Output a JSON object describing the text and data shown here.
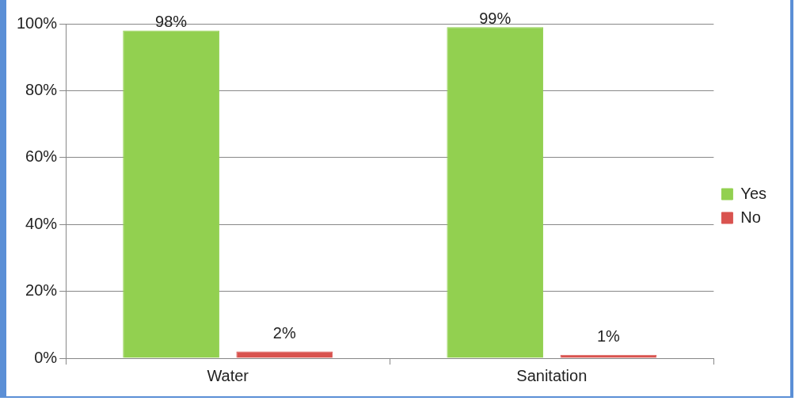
{
  "chart_data": {
    "type": "bar",
    "categories": [
      "Water",
      "Sanitation"
    ],
    "series": [
      {
        "name": "Yes",
        "color": "#92d050",
        "values": [
          98,
          99
        ],
        "value_labels": [
          "98%",
          "99%"
        ]
      },
      {
        "name": "No",
        "color": "#d9534f",
        "values": [
          2,
          1
        ],
        "value_labels": [
          "2%",
          "1%"
        ]
      }
    ],
    "ylim": [
      0,
      100
    ],
    "yticks": [
      {
        "value": 0,
        "label": "0%"
      },
      {
        "value": 20,
        "label": "20%"
      },
      {
        "value": 40,
        "label": "40%"
      },
      {
        "value": 60,
        "label": "60%"
      },
      {
        "value": 80,
        "label": "80%"
      },
      {
        "value": 100,
        "label": "100%"
      }
    ],
    "grid": "y",
    "legend": "right"
  }
}
